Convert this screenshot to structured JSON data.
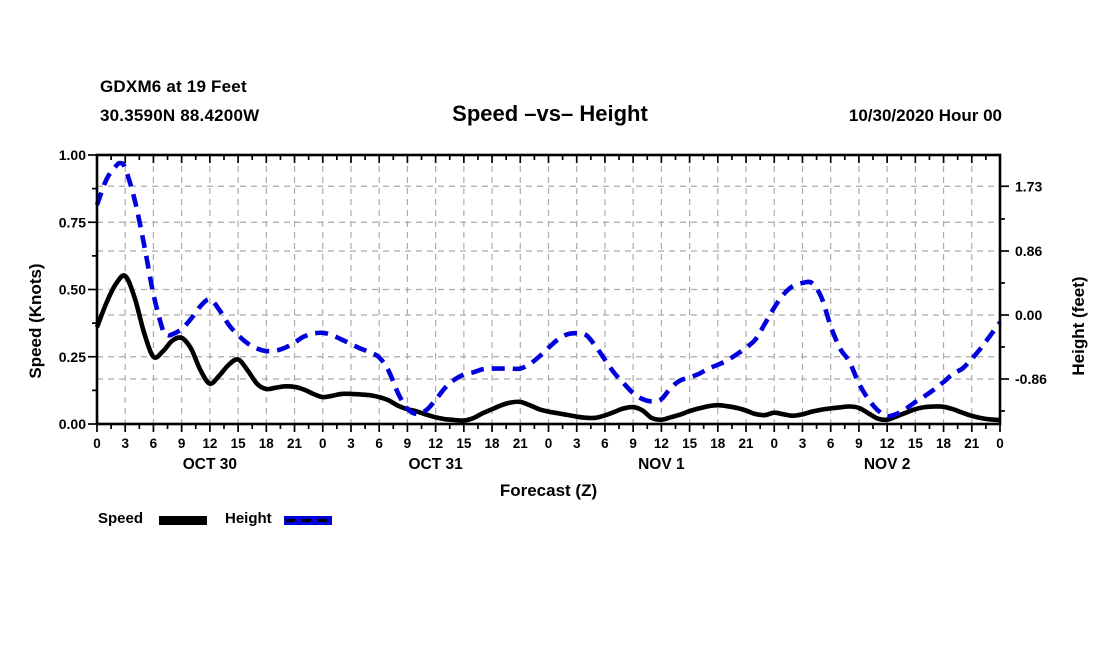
{
  "header": {
    "station_line1": "GDXM6 at 19 Feet",
    "station_line2": "30.3590N 88.4200W",
    "title": "Speed –vs– Height",
    "datetime": "10/30/2020 Hour 00"
  },
  "colors": {
    "speed_black": "#000000",
    "height_blue": "#0000dd",
    "grid_gray": "#ababab"
  },
  "legend": {
    "items": [
      {
        "label": "Speed",
        "style": "solid",
        "color": "#000000"
      },
      {
        "label": "Height",
        "style": "dashed",
        "color": "#0000dd"
      }
    ]
  },
  "chart_data": {
    "type": "line",
    "title": "Speed –vs– Height",
    "x_axis": {
      "label": "Forecast (Z)",
      "range_hours": [
        0,
        96
      ],
      "tick_step_hours": 3,
      "minor_tick_step_hours": 1.5,
      "tick_labels": [
        "0",
        "3",
        "6",
        "9",
        "12",
        "15",
        "18",
        "21",
        "0",
        "3",
        "6",
        "9",
        "12",
        "15",
        "18",
        "21",
        "0",
        "3",
        "6",
        "9",
        "12",
        "15",
        "18",
        "21",
        "0",
        "3",
        "6",
        "9",
        "12",
        "15",
        "18",
        "21",
        "0"
      ],
      "days": [
        {
          "label": "OCT 30",
          "center_hour": 12
        },
        {
          "label": "OCT 31",
          "center_hour": 36
        },
        {
          "label": "NOV 1",
          "center_hour": 60
        },
        {
          "label": "NOV 2",
          "center_hour": 84
        }
      ]
    },
    "left_axis": {
      "label": "Speed (Knots)",
      "range": [
        0,
        1.0
      ],
      "ticks": [
        0,
        0.25,
        0.5,
        0.75,
        1.0
      ],
      "tick_labels": [
        "0.00",
        "0.25",
        "0.50",
        "0.75",
        "1.00"
      ],
      "minor_step": 0.125
    },
    "right_axis": {
      "label": "Height (feet)",
      "range": [
        -1.465,
        2.15
      ],
      "ticks": [
        -0.86,
        0,
        0.86,
        1.73
      ],
      "tick_labels": [
        "-0.86",
        "0.00",
        "0.86",
        "1.73"
      ],
      "minor_ticks": [
        -1.29,
        -0.43,
        0.43,
        1.29
      ]
    },
    "grid": {
      "show": true,
      "style": "dashed",
      "color": "#ababab",
      "vertical_every_hours": 3,
      "horizontal_at_left_ticks": [
        0.25,
        0.5,
        0.75
      ],
      "horizontal_at_right_ticks": [
        -0.86,
        0,
        0.86,
        1.73
      ]
    },
    "legend_position": "bottom-left",
    "series": [
      {
        "name": "Speed",
        "axis": "left",
        "units": "knots",
        "color": "#000000",
        "line_style": "solid",
        "line_width": 4.6,
        "points": [
          [
            0,
            0.36
          ],
          [
            1,
            0.45
          ],
          [
            2,
            0.52
          ],
          [
            3,
            0.55
          ],
          [
            4,
            0.47
          ],
          [
            5,
            0.34
          ],
          [
            6,
            0.25
          ],
          [
            7,
            0.27
          ],
          [
            8,
            0.31
          ],
          [
            9,
            0.32
          ],
          [
            10,
            0.28
          ],
          [
            11,
            0.2
          ],
          [
            12,
            0.15
          ],
          [
            13,
            0.18
          ],
          [
            14,
            0.22
          ],
          [
            15,
            0.24
          ],
          [
            16,
            0.2
          ],
          [
            17,
            0.15
          ],
          [
            18,
            0.13
          ],
          [
            19,
            0.135
          ],
          [
            20,
            0.14
          ],
          [
            21,
            0.138
          ],
          [
            22,
            0.128
          ],
          [
            23,
            0.112
          ],
          [
            24,
            0.1
          ],
          [
            25,
            0.105
          ],
          [
            26,
            0.112
          ],
          [
            27,
            0.112
          ],
          [
            28,
            0.11
          ],
          [
            29,
            0.107
          ],
          [
            30,
            0.1
          ],
          [
            31,
            0.088
          ],
          [
            32,
            0.068
          ],
          [
            33,
            0.055
          ],
          [
            34,
            0.047
          ],
          [
            35,
            0.035
          ],
          [
            36,
            0.025
          ],
          [
            37,
            0.018
          ],
          [
            38,
            0.015
          ],
          [
            39,
            0.013
          ],
          [
            40,
            0.022
          ],
          [
            41,
            0.04
          ],
          [
            42,
            0.055
          ],
          [
            43,
            0.07
          ],
          [
            44,
            0.08
          ],
          [
            45,
            0.082
          ],
          [
            46,
            0.07
          ],
          [
            47,
            0.055
          ],
          [
            48,
            0.046
          ],
          [
            49,
            0.04
          ],
          [
            50,
            0.034
          ],
          [
            51,
            0.027
          ],
          [
            52,
            0.023
          ],
          [
            53,
            0.023
          ],
          [
            54,
            0.032
          ],
          [
            55,
            0.045
          ],
          [
            56,
            0.058
          ],
          [
            57,
            0.063
          ],
          [
            58,
            0.05
          ],
          [
            59,
            0.022
          ],
          [
            60,
            0.016
          ],
          [
            61,
            0.025
          ],
          [
            62,
            0.035
          ],
          [
            63,
            0.048
          ],
          [
            64,
            0.058
          ],
          [
            65,
            0.066
          ],
          [
            66,
            0.07
          ],
          [
            67,
            0.066
          ],
          [
            68,
            0.06
          ],
          [
            69,
            0.05
          ],
          [
            70,
            0.037
          ],
          [
            71,
            0.033
          ],
          [
            72,
            0.042
          ],
          [
            73,
            0.036
          ],
          [
            74,
            0.031
          ],
          [
            75,
            0.036
          ],
          [
            76,
            0.046
          ],
          [
            77,
            0.053
          ],
          [
            78,
            0.058
          ],
          [
            79,
            0.062
          ],
          [
            80,
            0.065
          ],
          [
            81,
            0.06
          ],
          [
            82,
            0.04
          ],
          [
            83,
            0.02
          ],
          [
            84,
            0.016
          ],
          [
            85,
            0.028
          ],
          [
            86,
            0.042
          ],
          [
            87,
            0.055
          ],
          [
            88,
            0.063
          ],
          [
            89,
            0.065
          ],
          [
            90,
            0.064
          ],
          [
            91,
            0.055
          ],
          [
            92,
            0.042
          ],
          [
            93,
            0.03
          ],
          [
            94,
            0.022
          ],
          [
            95,
            0.017
          ],
          [
            96,
            0.015
          ]
        ]
      },
      {
        "name": "Height",
        "axis": "right",
        "units": "feet",
        "color": "#0000dd",
        "line_style": "dashed",
        "line_width": 4.6,
        "points": [
          [
            0,
            1.48
          ],
          [
            1,
            1.82
          ],
          [
            2,
            2.0
          ],
          [
            2.5,
            2.04
          ],
          [
            3,
            1.97
          ],
          [
            4,
            1.55
          ],
          [
            5,
            0.95
          ],
          [
            6,
            0.28
          ],
          [
            7,
            -0.2
          ],
          [
            7.5,
            -0.27
          ],
          [
            8,
            -0.26
          ],
          [
            9,
            -0.19
          ],
          [
            10,
            -0.05
          ],
          [
            11,
            0.12
          ],
          [
            12,
            0.21
          ],
          [
            13,
            0.07
          ],
          [
            14,
            -0.13
          ],
          [
            15,
            -0.27
          ],
          [
            16,
            -0.38
          ],
          [
            17,
            -0.45
          ],
          [
            18,
            -0.485
          ],
          [
            19,
            -0.48
          ],
          [
            20,
            -0.44
          ],
          [
            21,
            -0.37
          ],
          [
            22,
            -0.29
          ],
          [
            23,
            -0.25
          ],
          [
            24,
            -0.24
          ],
          [
            25,
            -0.27
          ],
          [
            26,
            -0.33
          ],
          [
            27,
            -0.39
          ],
          [
            28,
            -0.45
          ],
          [
            29,
            -0.5
          ],
          [
            30,
            -0.57
          ],
          [
            31,
            -0.75
          ],
          [
            32,
            -1.05
          ],
          [
            33,
            -1.26
          ],
          [
            34,
            -1.33
          ],
          [
            35,
            -1.28
          ],
          [
            36,
            -1.14
          ],
          [
            37,
            -0.98
          ],
          [
            38,
            -0.87
          ],
          [
            39,
            -0.8
          ],
          [
            40,
            -0.77
          ],
          [
            41,
            -0.73
          ],
          [
            42,
            -0.72
          ],
          [
            43,
            -0.72
          ],
          [
            44,
            -0.72
          ],
          [
            45,
            -0.72
          ],
          [
            46,
            -0.66
          ],
          [
            47,
            -0.56
          ],
          [
            48,
            -0.44
          ],
          [
            49,
            -0.33
          ],
          [
            50,
            -0.26
          ],
          [
            51,
            -0.245
          ],
          [
            52,
            -0.27
          ],
          [
            53,
            -0.42
          ],
          [
            54,
            -0.6
          ],
          [
            55,
            -0.78
          ],
          [
            56,
            -0.92
          ],
          [
            57,
            -1.05
          ],
          [
            58,
            -1.13
          ],
          [
            59,
            -1.16
          ],
          [
            60,
            -1.13
          ],
          [
            61,
            -0.98
          ],
          [
            62,
            -0.88
          ],
          [
            63,
            -0.84
          ],
          [
            64,
            -0.79
          ],
          [
            65,
            -0.72
          ],
          [
            66,
            -0.67
          ],
          [
            67,
            -0.61
          ],
          [
            68,
            -0.53
          ],
          [
            69,
            -0.44
          ],
          [
            70,
            -0.33
          ],
          [
            71,
            -0.12
          ],
          [
            72,
            0.1
          ],
          [
            73,
            0.28
          ],
          [
            74,
            0.39
          ],
          [
            75,
            0.43
          ],
          [
            76,
            0.43
          ],
          [
            77,
            0.24
          ],
          [
            78,
            -0.15
          ],
          [
            79,
            -0.45
          ],
          [
            80,
            -0.63
          ],
          [
            81,
            -0.92
          ],
          [
            82,
            -1.13
          ],
          [
            83,
            -1.28
          ],
          [
            84,
            -1.36
          ],
          [
            85,
            -1.33
          ],
          [
            86,
            -1.26
          ],
          [
            87,
            -1.17
          ],
          [
            88,
            -1.09
          ],
          [
            89,
            -1.0
          ],
          [
            90,
            -0.9
          ],
          [
            91,
            -0.79
          ],
          [
            92,
            -0.72
          ],
          [
            93,
            -0.59
          ],
          [
            94,
            -0.44
          ],
          [
            95,
            -0.27
          ],
          [
            96,
            -0.1
          ]
        ]
      }
    ]
  }
}
